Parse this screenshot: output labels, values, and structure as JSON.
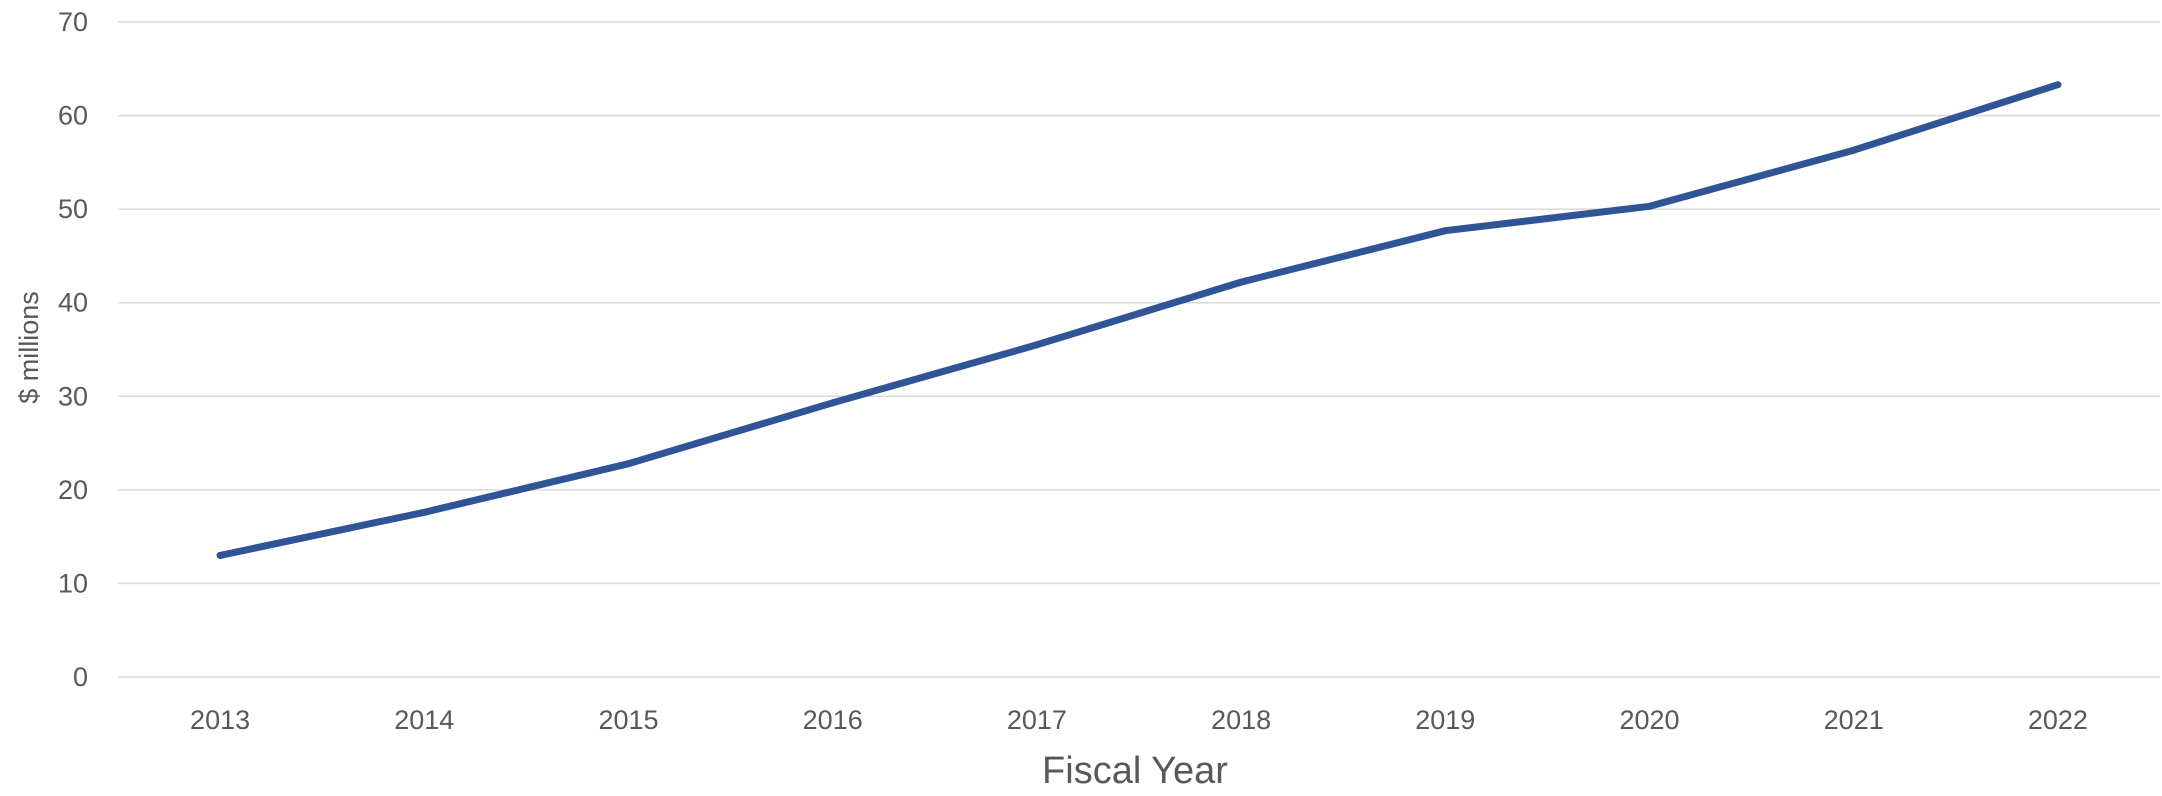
{
  "chart_data": {
    "type": "line",
    "categories": [
      "2013",
      "2014",
      "2015",
      "2016",
      "2017",
      "2018",
      "2019",
      "2020",
      "2021",
      "2022"
    ],
    "series": [
      {
        "values": [
          13.0,
          17.6,
          22.8,
          29.3,
          35.5,
          42.2,
          47.7,
          50.3,
          56.3,
          63.3
        ]
      }
    ],
    "title": "",
    "xlabel": "Fiscal Year",
    "ylabel": "$ millions",
    "ylim": [
      0,
      70
    ],
    "yticks": [
      0,
      10,
      20,
      30,
      40,
      50,
      60,
      70
    ],
    "grid": true,
    "legend": "none",
    "colors": {
      "line": "#2f5597",
      "grid": "#d9d9d9",
      "text": "#595959"
    }
  }
}
